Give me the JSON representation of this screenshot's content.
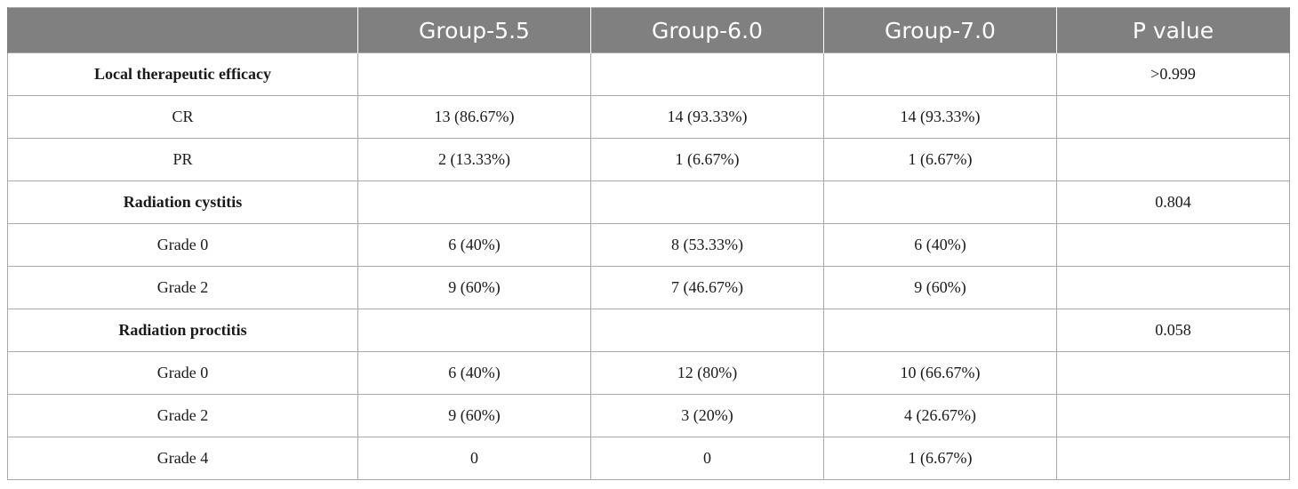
{
  "table": {
    "headers": [
      "",
      "Group-5.5",
      "Group-6.0",
      "Group-7.0",
      "P value"
    ],
    "rows": [
      {
        "section": true,
        "cells": [
          "Local therapeutic efficacy",
          "",
          "",
          "",
          ">0.999"
        ]
      },
      {
        "section": false,
        "cells": [
          "CR",
          "13 (86.67%)",
          "14 (93.33%)",
          "14 (93.33%)",
          ""
        ]
      },
      {
        "section": false,
        "cells": [
          "PR",
          "2 (13.33%)",
          "1 (6.67%)",
          "1 (6.67%)",
          ""
        ]
      },
      {
        "section": true,
        "cells": [
          "Radiation cystitis",
          "",
          "",
          "",
          "0.804"
        ]
      },
      {
        "section": false,
        "cells": [
          "Grade 0",
          "6 (40%)",
          "8 (53.33%)",
          "6 (40%)",
          ""
        ]
      },
      {
        "section": false,
        "cells": [
          "Grade 2",
          "9 (60%)",
          "7 (46.67%)",
          "9 (60%)",
          ""
        ]
      },
      {
        "section": true,
        "cells": [
          "Radiation proctitis",
          "",
          "",
          "",
          "0.058"
        ]
      },
      {
        "section": false,
        "cells": [
          "Grade 0",
          "6 (40%)",
          "12 (80%)",
          "10 (66.67%)",
          ""
        ]
      },
      {
        "section": false,
        "cells": [
          "Grade 2",
          "9 (60%)",
          "3 (20%)",
          "4 (26.67%)",
          ""
        ]
      },
      {
        "section": false,
        "cells": [
          "Grade 4",
          "0",
          "0",
          "1 (6.67%)",
          ""
        ]
      }
    ]
  },
  "colors": {
    "header_background": "#808080",
    "header_text": "#ffffff",
    "grid_lines": "#a8a8a8"
  }
}
